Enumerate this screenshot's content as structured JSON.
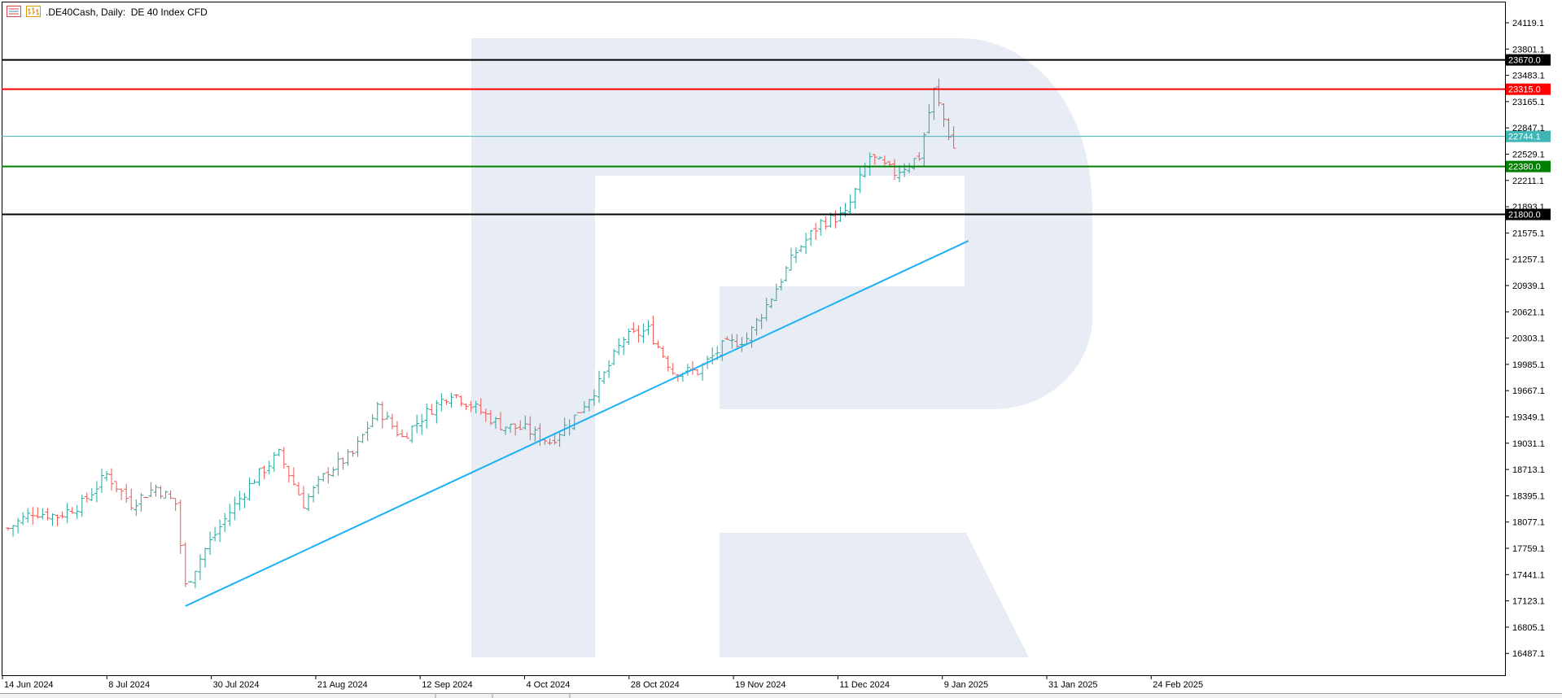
{
  "header": {
    "symbol": ".DE40Cash",
    "timeframe": "Daily:",
    "description": "DE 40 Index CFD"
  },
  "colors": {
    "bull": "#26a69a",
    "bear": "#ef5350",
    "trendline": "#1cb0f6",
    "resistance_black": "#000000",
    "resistance_red": "#ff0000",
    "support_green": "#008000",
    "current_price": "#3fb5b5",
    "watermark": "#e8edf5"
  },
  "chart_data": {
    "type": "candlestick",
    "title": ".DE40Cash, Daily: DE 40 Index CFD",
    "y_axis_ticks": [
      "24119.1",
      "23801.1",
      "23483.1",
      "23165.1",
      "22847.1",
      "22529.1",
      "22211.1",
      "21893.1",
      "21575.1",
      "21257.1",
      "20939.1",
      "20621.1",
      "20303.1",
      "19985.1",
      "19667.1",
      "19349.1",
      "19031.1",
      "18713.1",
      "18395.1",
      "18077.1",
      "17759.1",
      "17441.1",
      "17123.1",
      "16805.1",
      "16487.1"
    ],
    "x_axis_ticks": [
      "14 Jun 2024",
      "8 Jul 2024",
      "30 Jul 2024",
      "21 Aug 2024",
      "12 Sep 2024",
      "4 Oct 2024",
      "28 Oct 2024",
      "19 Nov 2024",
      "11 Dec 2024",
      "9 Jan 2025",
      "31 Jan 2025",
      "24 Feb 2025"
    ],
    "ylim": [
      16300,
      24300
    ],
    "horizontal_levels": [
      {
        "price": 23670.0,
        "label": "23670.0",
        "color": "#000000"
      },
      {
        "price": 23315.0,
        "label": "23315.0",
        "color": "#ff0000"
      },
      {
        "price": 22744.1,
        "label": "22744.1",
        "color": "#3fb5b5"
      },
      {
        "price": 22380.0,
        "label": "22380.0",
        "color": "#008000"
      },
      {
        "price": 21800.0,
        "label": "21800.0",
        "color": "#000000"
      }
    ],
    "trendline": {
      "start": {
        "date": "2024-08-05",
        "price": 17060
      },
      "end": {
        "date": "2025-03-15",
        "price": 21480
      }
    },
    "anchors": [
      [
        "2024-06-14",
        18000
      ],
      [
        "2024-06-21",
        18200
      ],
      [
        "2024-06-28",
        18150
      ],
      [
        "2024-07-05",
        18300
      ],
      [
        "2024-07-12",
        18650
      ],
      [
        "2024-07-19",
        18300
      ],
      [
        "2024-07-26",
        18500
      ],
      [
        "2024-08-01",
        18300
      ],
      [
        "2024-08-05",
        17300
      ],
      [
        "2024-08-09",
        17750
      ],
      [
        "2024-08-16",
        18200
      ],
      [
        "2024-08-23",
        18600
      ],
      [
        "2024-08-30",
        18900
      ],
      [
        "2024-09-06",
        18300
      ],
      [
        "2024-09-13",
        18700
      ],
      [
        "2024-09-20",
        18900
      ],
      [
        "2024-09-27",
        19450
      ],
      [
        "2024-10-04",
        19100
      ],
      [
        "2024-10-11",
        19400
      ],
      [
        "2024-10-18",
        19650
      ],
      [
        "2024-10-25",
        19450
      ],
      [
        "2024-11-01",
        19250
      ],
      [
        "2024-11-08",
        19200
      ],
      [
        "2024-11-15",
        19050
      ],
      [
        "2024-11-22",
        19350
      ],
      [
        "2024-11-29",
        19750
      ],
      [
        "2024-12-06",
        20300
      ],
      [
        "2024-12-13",
        20400
      ],
      [
        "2024-12-20",
        19900
      ],
      [
        "2024-12-27",
        19900
      ],
      [
        "2025-01-03",
        20200
      ],
      [
        "2025-01-10",
        20300
      ],
      [
        "2025-01-17",
        20800
      ],
      [
        "2025-01-24",
        21350
      ],
      [
        "2025-01-31",
        21700
      ],
      [
        "2025-02-07",
        21800
      ],
      [
        "2025-02-14",
        22500
      ],
      [
        "2025-02-21",
        22300
      ],
      [
        "2025-02-28",
        22500
      ],
      [
        "2025-03-05",
        23300
      ],
      [
        "2025-03-11",
        22600
      ]
    ]
  }
}
